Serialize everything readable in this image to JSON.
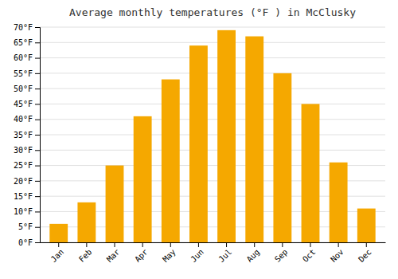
{
  "chart_data": {
    "type": "bar",
    "title": "Average monthly temperatures (°F ) in McClusky",
    "categories": [
      "Jan",
      "Feb",
      "Mar",
      "Apr",
      "May",
      "Jun",
      "Jul",
      "Aug",
      "Sep",
      "Oct",
      "Nov",
      "Dec"
    ],
    "values": [
      6,
      13,
      25,
      41,
      53,
      64,
      69,
      67,
      55,
      45,
      26,
      11
    ],
    "color": "#F5A800",
    "ylim": [
      0,
      70
    ],
    "yticks": [
      {
        "value": 0,
        "label": "0°F"
      },
      {
        "value": 5,
        "label": "5°F"
      },
      {
        "value": 10,
        "label": "10°F"
      },
      {
        "value": 15,
        "label": "15°F"
      },
      {
        "value": 20,
        "label": "20°F"
      },
      {
        "value": 25,
        "label": "25°F"
      },
      {
        "value": 30,
        "label": "30°F"
      },
      {
        "value": 35,
        "label": "35°F"
      },
      {
        "value": 40,
        "label": "40°F"
      },
      {
        "value": 45,
        "label": "45°F"
      },
      {
        "value": 50,
        "label": "50°F"
      },
      {
        "value": 55,
        "label": "55°F"
      },
      {
        "value": 60,
        "label": "60°F"
      },
      {
        "value": 65,
        "label": "65°F"
      },
      {
        "value": 70,
        "label": "70°F"
      }
    ],
    "grid": true
  }
}
